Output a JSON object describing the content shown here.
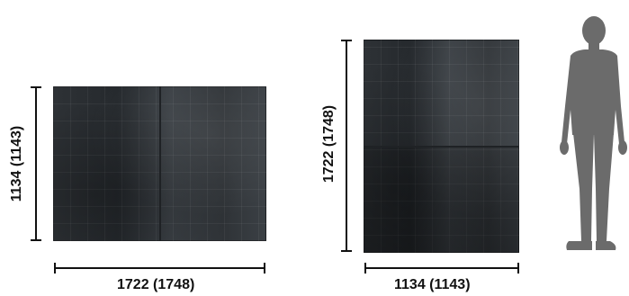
{
  "landscape": {
    "width_label": "1722 (1748)",
    "height_label": "1134 (1143)"
  },
  "portrait": {
    "width_label": "1134 (1143)",
    "height_label": "1722 (1748)"
  },
  "colors": {
    "panel": "#2e3236",
    "dimension_line": "#111111",
    "silhouette": "#6b6b6b"
  }
}
